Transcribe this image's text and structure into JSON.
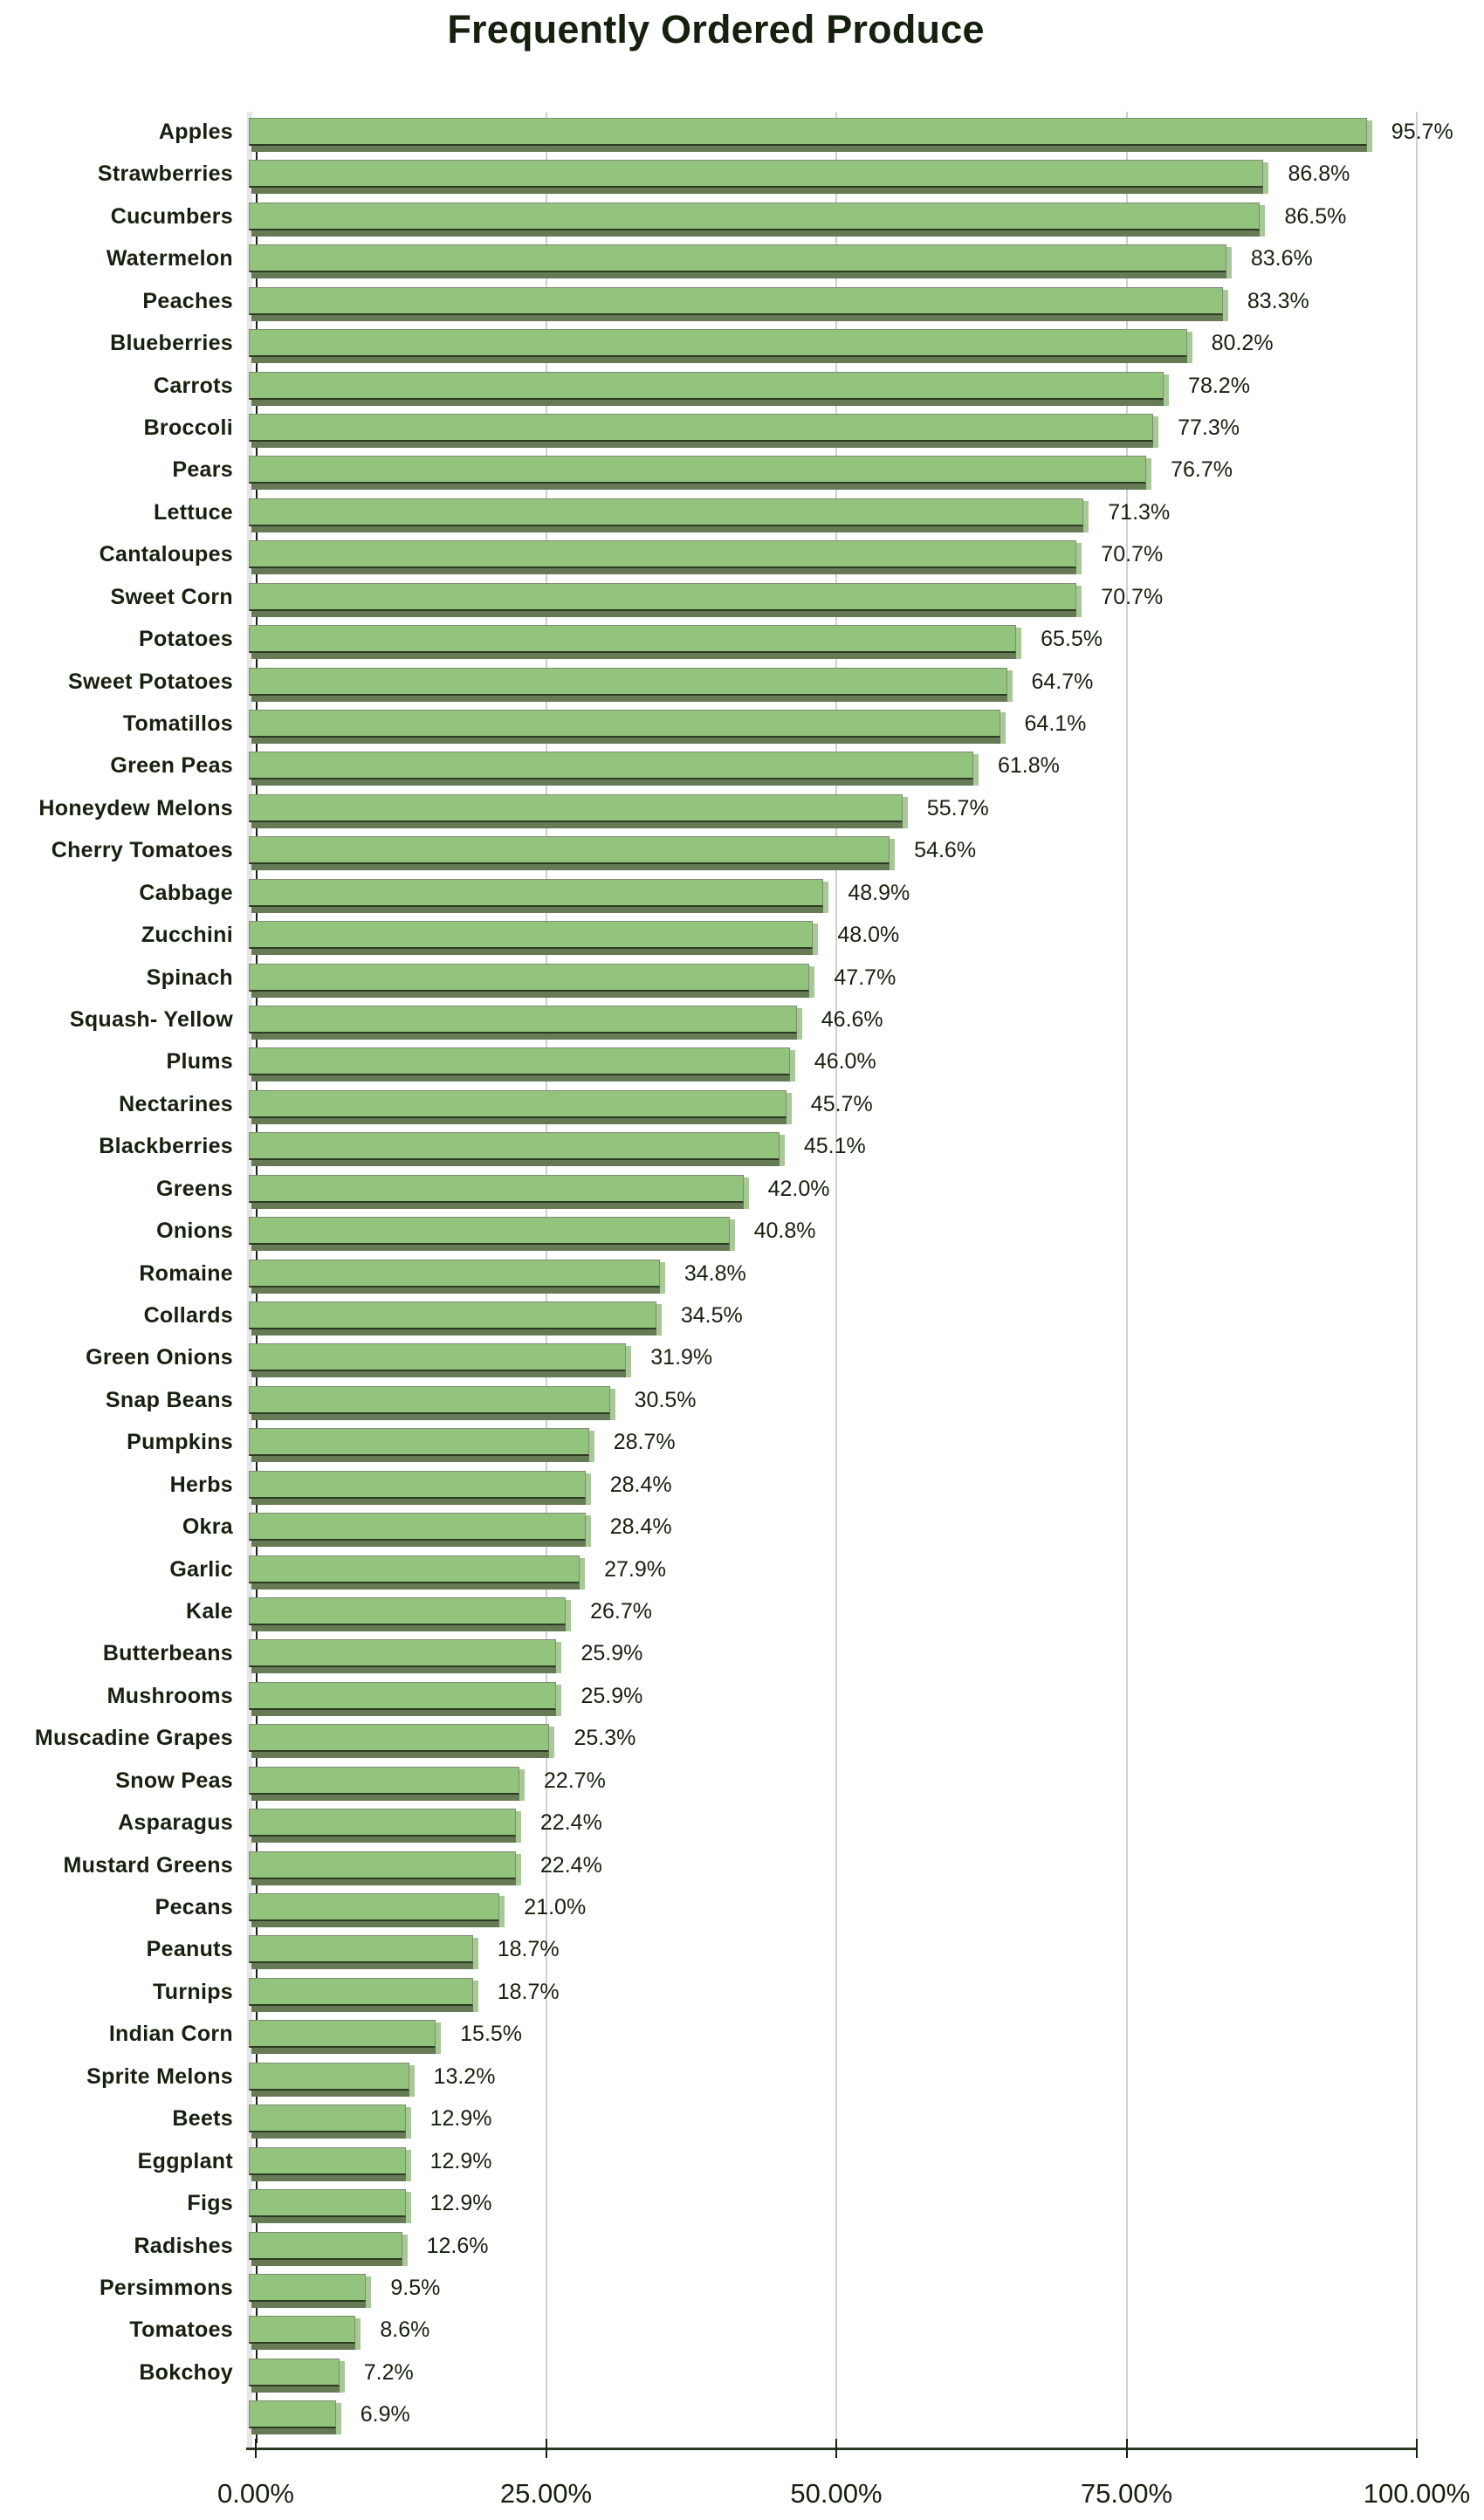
{
  "chart_data": {
    "type": "bar",
    "orientation": "horizontal",
    "style": "3d",
    "title": "Frequently Ordered Produce",
    "xlabel": "",
    "ylabel": "",
    "xlim": [
      0,
      100
    ],
    "x_ticks": [
      "0.00%",
      "25.00%",
      "50.00%",
      "75.00%",
      "100.00%"
    ],
    "grid": true,
    "legend": null,
    "bar_color": "#93c47d",
    "categories": [
      "Apples",
      "Strawberries",
      "Cucumbers",
      "Watermelon",
      "Peaches",
      "Blueberries",
      "Carrots",
      "Broccoli",
      "Pears",
      "Lettuce",
      "Cantaloupes",
      "Sweet Corn",
      "Potatoes",
      "Sweet Potatoes",
      "Tomatillos",
      "Green Peas",
      "Honeydew Melons",
      "Cherry Tomatoes",
      "Cabbage",
      "Zucchini",
      "Spinach",
      "Squash- Yellow",
      "Plums",
      "Nectarines",
      "Blackberries",
      "Greens",
      "Onions",
      "Romaine",
      "Collards",
      "Green Onions",
      "Snap Beans",
      "Pumpkins",
      "Herbs",
      "Okra",
      "Garlic",
      "Kale",
      "Butterbeans",
      "Mushrooms",
      "Muscadine Grapes",
      "Snow Peas",
      "Asparagus",
      "Mustard Greens",
      "Pecans",
      "Peanuts",
      "Turnips",
      "Indian Corn",
      "Sprite Melons",
      "Beets",
      "Eggplant",
      "Figs",
      "Radishes",
      "Persimmons",
      "Tomatoes",
      "Bokchoy",
      ""
    ],
    "values": [
      95.7,
      86.8,
      86.5,
      83.6,
      83.3,
      80.2,
      78.2,
      77.3,
      76.7,
      71.3,
      70.7,
      70.7,
      65.5,
      64.7,
      64.1,
      61.8,
      55.7,
      54.6,
      48.9,
      48.0,
      47.7,
      46.6,
      46.0,
      45.7,
      45.1,
      42.0,
      40.8,
      34.8,
      34.5,
      31.9,
      30.5,
      28.7,
      28.4,
      28.4,
      27.9,
      26.7,
      25.9,
      25.9,
      25.3,
      22.7,
      22.4,
      22.4,
      21.0,
      18.7,
      18.7,
      15.5,
      13.2,
      12.9,
      12.9,
      12.9,
      12.6,
      9.5,
      8.6,
      7.2,
      6.9
    ],
    "value_labels": [
      "95.7%",
      "86.8%",
      "86.5%",
      "83.6%",
      "83.3%",
      "80.2%",
      "78.2%",
      "77.3%",
      "76.7%",
      "71.3%",
      "70.7%",
      "70.7%",
      "65.5%",
      "64.7%",
      "64.1%",
      "61.8%",
      "55.7%",
      "54.6%",
      "48.9%",
      "48.0%",
      "47.7%",
      "46.6%",
      "46.0%",
      "45.7%",
      "45.1%",
      "42.0%",
      "40.8%",
      "34.8%",
      "34.5%",
      "31.9%",
      "30.5%",
      "28.7%",
      "28.4%",
      "28.4%",
      "27.9%",
      "26.7%",
      "25.9%",
      "25.9%",
      "25.3%",
      "22.7%",
      "22.4%",
      "22.4%",
      "21.0%",
      "18.7%",
      "18.7%",
      "15.5%",
      "13.2%",
      "12.9%",
      "12.9%",
      "12.9%",
      "12.6%",
      "9.5%",
      "8.6%",
      "7.2%",
      "6.9%"
    ]
  }
}
